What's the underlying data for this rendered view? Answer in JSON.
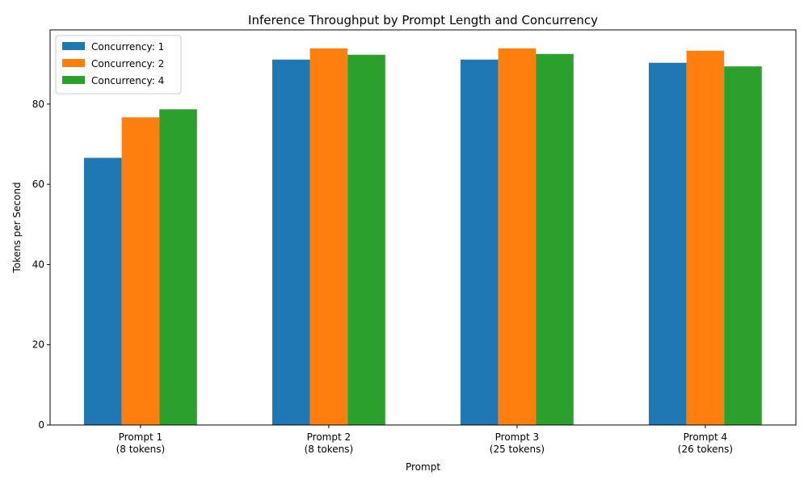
{
  "chart_data": {
    "type": "bar",
    "title": "Inference Throughput by Prompt Length and Concurrency",
    "xlabel": "Prompt",
    "ylabel": "Tokens per Second",
    "ylim": [
      0,
      98.5
    ],
    "yticks": [
      0,
      20,
      40,
      60,
      80
    ],
    "categories": [
      [
        "Prompt 1",
        "(8 tokens)"
      ],
      [
        "Prompt 2",
        "(8 tokens)"
      ],
      [
        "Prompt 3",
        "(25 tokens)"
      ],
      [
        "Prompt 4",
        "(26 tokens)"
      ]
    ],
    "series": [
      {
        "name": "Concurrency: 1",
        "color": "#1f77b4",
        "values": [
          66.6,
          91.1,
          91.1,
          90.3
        ]
      },
      {
        "name": "Concurrency: 2",
        "color": "#ff7f0e",
        "values": [
          76.7,
          93.9,
          93.9,
          93.3
        ]
      },
      {
        "name": "Concurrency: 4",
        "color": "#2ca02c",
        "values": [
          78.7,
          92.3,
          92.5,
          89.4
        ]
      }
    ],
    "grid": false,
    "legend_position": "top-left"
  }
}
